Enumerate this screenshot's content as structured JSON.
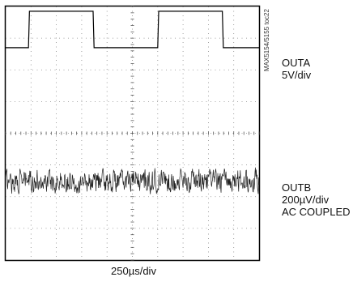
{
  "chart_data": [
    {
      "type": "line",
      "title": "",
      "grid": true,
      "divisions": {
        "x": 10,
        "y": 8
      },
      "series": [
        {
          "name": "OUTA",
          "label_lines": [
            "OUTA",
            "5V/div"
          ],
          "waveform": "square",
          "color": "#000000",
          "baseline_div": 2.7,
          "high_div": 3.85,
          "period_div": 5.1,
          "duty": 0.5,
          "first_rising_edge_div": 0.9
        },
        {
          "name": "OUTB",
          "label_lines": [
            "OUTB",
            "200µV/div",
            "AC COUPLED"
          ],
          "waveform": "noise",
          "color": "#222222",
          "center_div": -1.5,
          "amplitude_div": 0.45
        }
      ]
    }
  ],
  "x_scale": "250µs/div",
  "part_number": "MAX5154/5155 toc22"
}
